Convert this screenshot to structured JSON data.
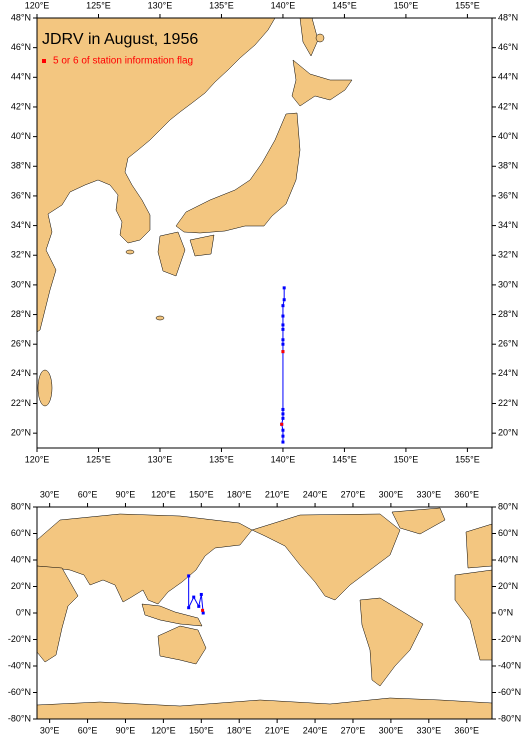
{
  "chart_data": [
    {
      "type": "map",
      "title": "JDRV in August, 1956",
      "xlim": [
        120,
        157
      ],
      "ylim": [
        19,
        48
      ],
      "xticks": [
        {
          "value": 120,
          "label": "120°E"
        },
        {
          "value": 125,
          "label": "125°E"
        },
        {
          "value": 130,
          "label": "130°E"
        },
        {
          "value": 135,
          "label": "135°E"
        },
        {
          "value": 140,
          "label": "140°E"
        },
        {
          "value": 145,
          "label": "145°E"
        },
        {
          "value": 150,
          "label": "150°E"
        },
        {
          "value": 155,
          "label": "155°E"
        }
      ],
      "yticks": [
        {
          "value": 20,
          "label": "20°N"
        },
        {
          "value": 22,
          "label": "22°N"
        },
        {
          "value": 24,
          "label": "24°N"
        },
        {
          "value": 26,
          "label": "26°N"
        },
        {
          "value": 28,
          "label": "28°N"
        },
        {
          "value": 30,
          "label": "30°N"
        },
        {
          "value": 32,
          "label": "32°N"
        },
        {
          "value": 34,
          "label": "34°N"
        },
        {
          "value": 36,
          "label": "36°N"
        },
        {
          "value": 38,
          "label": "38°N"
        },
        {
          "value": 40,
          "label": "40°N"
        },
        {
          "value": 42,
          "label": "42°N"
        },
        {
          "value": 44,
          "label": "44°N"
        },
        {
          "value": 46,
          "label": "46°N"
        },
        {
          "value": 48,
          "label": "48°N"
        }
      ],
      "series": [
        {
          "color": "#0000ff",
          "mode": "line+markers",
          "x": [
            140.1,
            140.1,
            140.0,
            140.0,
            140.0,
            140.0,
            140.0,
            140.0,
            140.0,
            140.0,
            140.0,
            140.0,
            139.9,
            140.0,
            140.0,
            140.0
          ],
          "y": [
            29.8,
            29.0,
            28.6,
            27.9,
            27.3,
            27.0,
            26.3,
            26.0,
            25.5,
            21.6,
            21.3,
            21.0,
            20.6,
            20.2,
            19.8,
            19.4
          ]
        },
        {
          "name": "5 or 6 of station information flag",
          "color": "#ff0000",
          "mode": "markers",
          "x": [
            140.0,
            139.9
          ],
          "y": [
            25.5,
            20.6
          ]
        }
      ]
    },
    {
      "type": "map",
      "xlim": [
        20,
        380
      ],
      "ylim": [
        -80,
        80
      ],
      "xticks": [
        {
          "value": 30,
          "label": "30°E"
        },
        {
          "value": 60,
          "label": "60°E"
        },
        {
          "value": 90,
          "label": "90°E"
        },
        {
          "value": 120,
          "label": "120°E"
        },
        {
          "value": 150,
          "label": "150°E"
        },
        {
          "value": 180,
          "label": "180°E"
        },
        {
          "value": 210,
          "label": "210°E"
        },
        {
          "value": 240,
          "label": "240°E"
        },
        {
          "value": 270,
          "label": "270°E"
        },
        {
          "value": 300,
          "label": "300°E"
        },
        {
          "value": 330,
          "label": "330°E"
        },
        {
          "value": 360,
          "label": "360°E"
        }
      ],
      "yticks": [
        {
          "value": -80,
          "label": "-80°N"
        },
        {
          "value": -60,
          "label": "-60°N"
        },
        {
          "value": -40,
          "label": "-40°N"
        },
        {
          "value": -20,
          "label": "-20°N"
        },
        {
          "value": 0,
          "label": "0°N"
        },
        {
          "value": 20,
          "label": "20°N"
        },
        {
          "value": 40,
          "label": "40°N"
        },
        {
          "value": 60,
          "label": "60°N"
        },
        {
          "value": 80,
          "label": "80°N"
        }
      ],
      "series": [
        {
          "color": "#0000ff",
          "mode": "line+markers",
          "x": [
            140,
            140,
            144,
            148,
            150,
            151.5
          ],
          "y": [
            28,
            4,
            12,
            5,
            14,
            0
          ]
        },
        {
          "color": "#ff0000",
          "mode": "markers",
          "x": [
            151
          ],
          "y": [
            2
          ]
        }
      ]
    }
  ]
}
